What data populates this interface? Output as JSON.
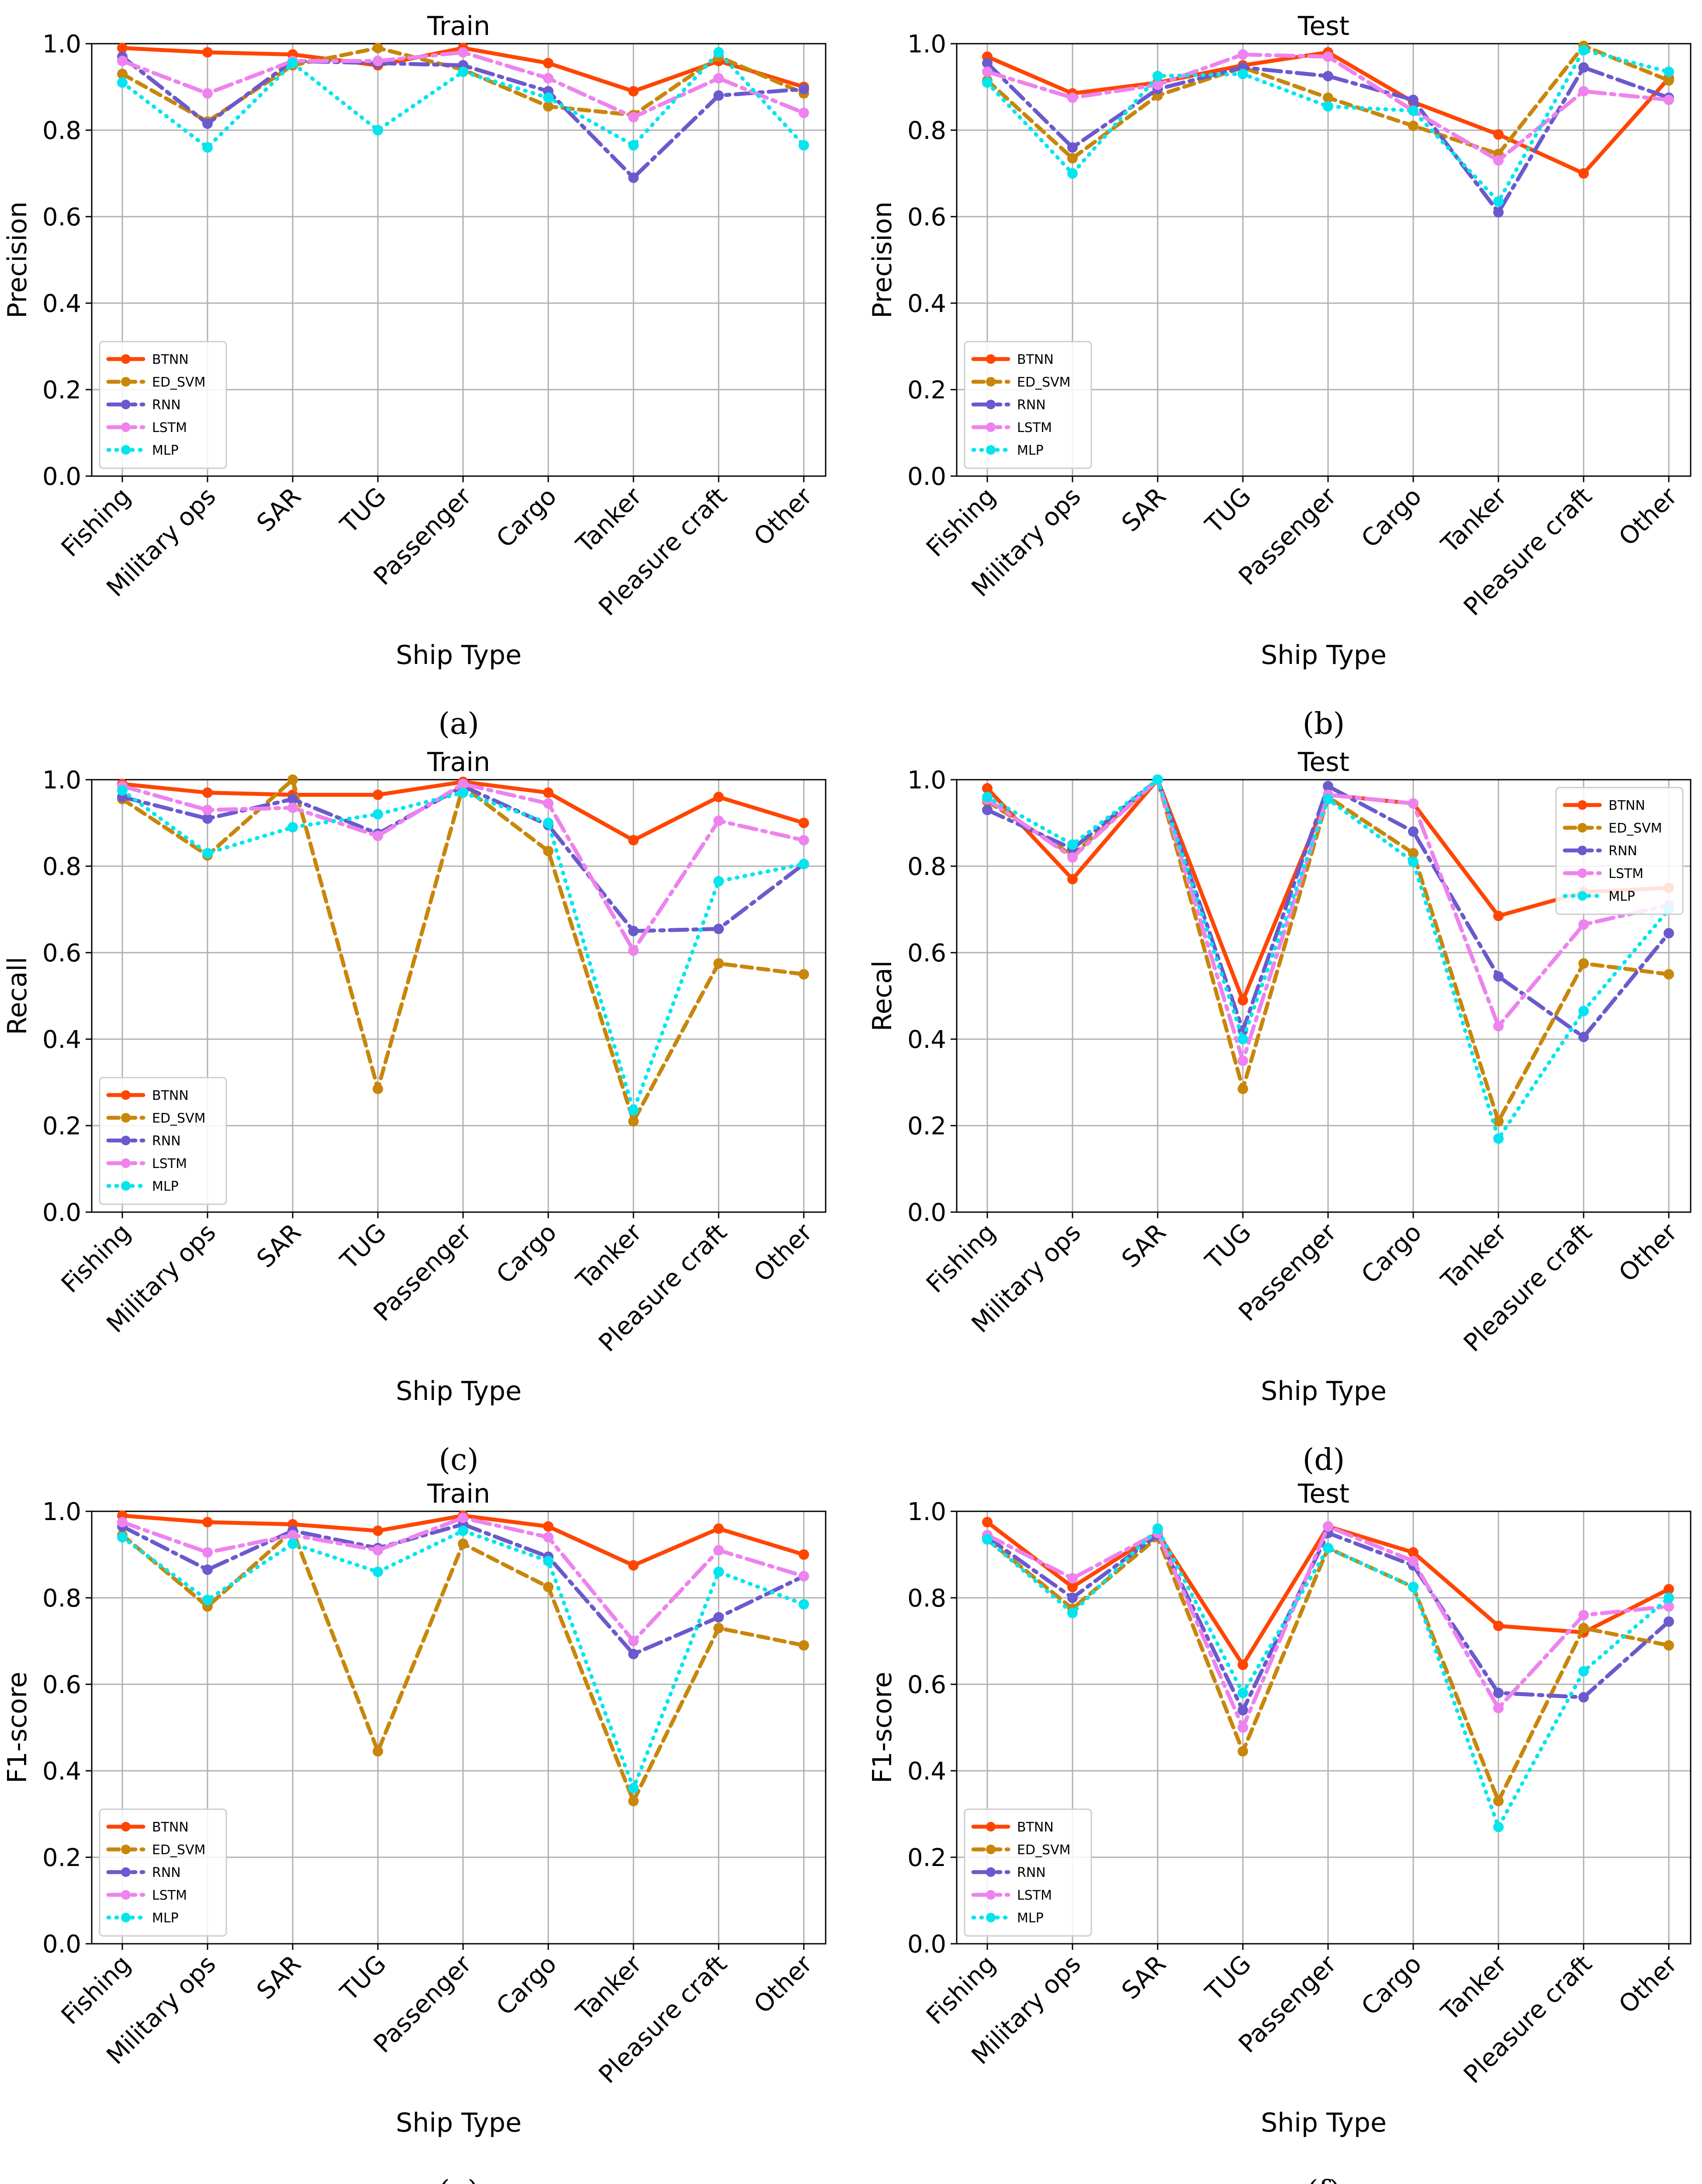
{
  "figure": {
    "series_styles": [
      {
        "name": "BTNN",
        "color": "#ff4500",
        "dash": "",
        "marker": "circle"
      },
      {
        "name": "ED_SVM",
        "color": "#c8860a",
        "dash": "24,14",
        "marker": "circle"
      },
      {
        "name": "RNN",
        "color": "#6a5acd",
        "dash": "40,14,8,14",
        "marker": "circle"
      },
      {
        "name": "LSTM",
        "color": "#ee82ee",
        "dash": "40,14,8,14",
        "marker": "circle"
      },
      {
        "name": "MLP",
        "color": "#00e5ee",
        "dash": "2,16",
        "marker": "circle"
      }
    ]
  },
  "chart_data": [
    {
      "type": "line",
      "panel": "(a)",
      "panel_letter": "a",
      "title": "Train",
      "xlabel": "Ship Type",
      "ylabel": "Precision",
      "ylim": [
        0,
        1.0
      ],
      "yticks": [
        "0.0",
        "0.2",
        "0.4",
        "0.6",
        "0.8",
        "1.0"
      ],
      "grid": true,
      "legend_position": "lower-left",
      "categories": [
        "Fishing",
        "Military ops",
        "SAR",
        "TUG",
        "Passenger",
        "Cargo",
        "Tanker",
        "Pleasure craft",
        "Other"
      ],
      "series": [
        {
          "name": "BTNN",
          "values": [
            0.99,
            0.98,
            0.975,
            0.95,
            0.99,
            0.955,
            0.89,
            0.96,
            0.9
          ]
        },
        {
          "name": "ED_SVM",
          "values": [
            0.93,
            0.82,
            0.95,
            0.99,
            0.94,
            0.855,
            0.835,
            0.97,
            0.885
          ]
        },
        {
          "name": "RNN",
          "values": [
            0.97,
            0.815,
            0.96,
            0.955,
            0.95,
            0.89,
            0.69,
            0.88,
            0.895
          ]
        },
        {
          "name": "LSTM",
          "values": [
            0.96,
            0.885,
            0.96,
            0.96,
            0.98,
            0.92,
            0.83,
            0.92,
            0.84
          ]
        },
        {
          "name": "MLP",
          "values": [
            0.91,
            0.76,
            0.955,
            0.8,
            0.935,
            0.875,
            0.765,
            0.98,
            0.765
          ]
        }
      ]
    },
    {
      "type": "line",
      "panel": "(b)",
      "panel_letter": "b",
      "title": "Test",
      "xlabel": "Ship Type",
      "ylabel": "Precision",
      "ylim": [
        0,
        1.0
      ],
      "yticks": [
        "0.0",
        "0.2",
        "0.4",
        "0.6",
        "0.8",
        "1.0"
      ],
      "grid": true,
      "legend_position": "lower-left",
      "categories": [
        "Fishing",
        "Military ops",
        "SAR",
        "TUG",
        "Passenger",
        "Cargo",
        "Tanker",
        "Pleasure craft",
        "Other"
      ],
      "series": [
        {
          "name": "BTNN",
          "values": [
            0.97,
            0.885,
            0.91,
            0.95,
            0.98,
            0.865,
            0.79,
            0.7,
            0.92
          ]
        },
        {
          "name": "ED_SVM",
          "values": [
            0.915,
            0.735,
            0.88,
            0.945,
            0.875,
            0.81,
            0.745,
            0.995,
            0.915
          ]
        },
        {
          "name": "RNN",
          "values": [
            0.955,
            0.76,
            0.895,
            0.945,
            0.925,
            0.87,
            0.61,
            0.945,
            0.875
          ]
        },
        {
          "name": "LSTM",
          "values": [
            0.935,
            0.875,
            0.905,
            0.975,
            0.97,
            0.845,
            0.73,
            0.89,
            0.87
          ]
        },
        {
          "name": "MLP",
          "values": [
            0.91,
            0.7,
            0.925,
            0.93,
            0.855,
            0.845,
            0.635,
            0.985,
            0.935
          ]
        }
      ]
    },
    {
      "type": "line",
      "panel": "(c)",
      "panel_letter": "c",
      "title": "Train",
      "xlabel": "Ship Type",
      "ylabel": "Recall",
      "ylim": [
        0,
        1.0
      ],
      "yticks": [
        "0.0",
        "0.2",
        "0.4",
        "0.6",
        "0.8",
        "1.0"
      ],
      "grid": true,
      "legend_position": "lower-left",
      "categories": [
        "Fishing",
        "Military ops",
        "SAR",
        "TUG",
        "Passenger",
        "Cargo",
        "Tanker",
        "Pleasure craft",
        "Other"
      ],
      "series": [
        {
          "name": "BTNN",
          "values": [
            0.99,
            0.97,
            0.965,
            0.965,
            0.995,
            0.97,
            0.86,
            0.96,
            0.9
          ]
        },
        {
          "name": "ED_SVM",
          "values": [
            0.955,
            0.825,
            1.0,
            0.285,
            0.985,
            0.835,
            0.21,
            0.575,
            0.55
          ]
        },
        {
          "name": "RNN",
          "values": [
            0.96,
            0.91,
            0.955,
            0.875,
            0.985,
            0.895,
            0.65,
            0.655,
            0.805
          ]
        },
        {
          "name": "LSTM",
          "values": [
            0.985,
            0.93,
            0.935,
            0.87,
            0.99,
            0.945,
            0.605,
            0.905,
            0.86
          ]
        },
        {
          "name": "MLP",
          "values": [
            0.975,
            0.83,
            0.89,
            0.92,
            0.97,
            0.9,
            0.235,
            0.765,
            0.805
          ]
        }
      ]
    },
    {
      "type": "line",
      "panel": "(d)",
      "panel_letter": "d",
      "title": "Test",
      "xlabel": "Ship Type",
      "ylabel": "Recal",
      "ylim": [
        0,
        1.0
      ],
      "yticks": [
        "0.0",
        "0.2",
        "0.4",
        "0.6",
        "0.8",
        "1.0"
      ],
      "grid": true,
      "legend_position": "upper-right",
      "categories": [
        "Fishing",
        "Military ops",
        "SAR",
        "TUG",
        "Passenger",
        "Cargo",
        "Tanker",
        "Pleasure craft",
        "Other"
      ],
      "series": [
        {
          "name": "BTNN",
          "values": [
            0.98,
            0.77,
            1.0,
            0.49,
            0.965,
            0.945,
            0.685,
            0.74,
            0.75
          ]
        },
        {
          "name": "ED_SVM",
          "values": [
            0.95,
            0.825,
            1.0,
            0.285,
            0.96,
            0.83,
            0.21,
            0.575,
            0.55
          ]
        },
        {
          "name": "RNN",
          "values": [
            0.93,
            0.84,
            1.0,
            0.42,
            0.985,
            0.88,
            0.545,
            0.405,
            0.645
          ]
        },
        {
          "name": "LSTM",
          "values": [
            0.955,
            0.82,
            1.0,
            0.35,
            0.965,
            0.945,
            0.43,
            0.665,
            0.71
          ]
        },
        {
          "name": "MLP",
          "values": [
            0.96,
            0.85,
            1.0,
            0.4,
            0.955,
            0.81,
            0.17,
            0.465,
            0.7
          ]
        }
      ]
    },
    {
      "type": "line",
      "panel": "(e)",
      "panel_letter": "e",
      "title": "Train",
      "xlabel": "Ship Type",
      "ylabel": "F1-score",
      "ylim": [
        0,
        1.0
      ],
      "yticks": [
        "0.0",
        "0.2",
        "0.4",
        "0.6",
        "0.8",
        "1.0"
      ],
      "grid": true,
      "legend_position": "lower-left",
      "categories": [
        "Fishing",
        "Military ops",
        "SAR",
        "TUG",
        "Passenger",
        "Cargo",
        "Tanker",
        "Pleasure craft",
        "Other"
      ],
      "series": [
        {
          "name": "BTNN",
          "values": [
            0.99,
            0.975,
            0.97,
            0.955,
            0.99,
            0.965,
            0.875,
            0.96,
            0.9
          ]
        },
        {
          "name": "ED_SVM",
          "values": [
            0.945,
            0.78,
            0.955,
            0.445,
            0.925,
            0.825,
            0.33,
            0.73,
            0.69
          ]
        },
        {
          "name": "RNN",
          "values": [
            0.965,
            0.865,
            0.955,
            0.915,
            0.97,
            0.895,
            0.67,
            0.755,
            0.85
          ]
        },
        {
          "name": "LSTM",
          "values": [
            0.975,
            0.905,
            0.945,
            0.91,
            0.985,
            0.94,
            0.7,
            0.91,
            0.85
          ]
        },
        {
          "name": "MLP",
          "values": [
            0.94,
            0.795,
            0.925,
            0.86,
            0.955,
            0.885,
            0.36,
            0.86,
            0.785
          ]
        }
      ]
    },
    {
      "type": "line",
      "panel": "(f)",
      "panel_letter": "f",
      "title": "Test",
      "xlabel": "Ship Type",
      "ylabel": "F1-score",
      "ylim": [
        0,
        1.0
      ],
      "yticks": [
        "0.0",
        "0.2",
        "0.4",
        "0.6",
        "0.8",
        "1.0"
      ],
      "grid": true,
      "legend_position": "lower-left",
      "categories": [
        "Fishing",
        "Military ops",
        "SAR",
        "TUG",
        "Passenger",
        "Cargo",
        "Tanker",
        "Pleasure craft",
        "Other"
      ],
      "series": [
        {
          "name": "BTNN",
          "values": [
            0.975,
            0.825,
            0.95,
            0.645,
            0.965,
            0.905,
            0.735,
            0.72,
            0.82
          ]
        },
        {
          "name": "ED_SVM",
          "values": [
            0.935,
            0.775,
            0.94,
            0.445,
            0.915,
            0.825,
            0.33,
            0.73,
            0.69
          ]
        },
        {
          "name": "RNN",
          "values": [
            0.94,
            0.8,
            0.945,
            0.54,
            0.95,
            0.875,
            0.58,
            0.57,
            0.745
          ]
        },
        {
          "name": "LSTM",
          "values": [
            0.945,
            0.845,
            0.95,
            0.5,
            0.965,
            0.885,
            0.545,
            0.76,
            0.78
          ]
        },
        {
          "name": "MLP",
          "values": [
            0.935,
            0.765,
            0.96,
            0.58,
            0.915,
            0.825,
            0.27,
            0.63,
            0.8
          ]
        }
      ]
    }
  ]
}
